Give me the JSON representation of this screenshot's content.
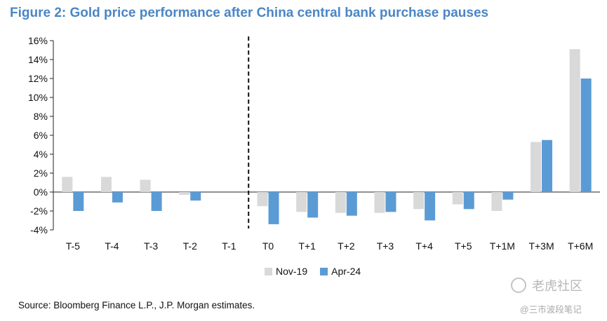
{
  "title": "Figure 2: Gold price performance after China central bank purchase pauses",
  "source": "Source: Bloomberg Finance L.P., J.P. Morgan estimates.",
  "watermark": {
    "brand": "老虎社区",
    "handle": "@三市波段笔记"
  },
  "colors": {
    "title": "#4a86c5",
    "series_nov19": "#d9d9d9",
    "series_apr24": "#5b9bd5"
  },
  "chart_data": {
    "type": "bar",
    "categories": [
      "T-5",
      "T-4",
      "T-3",
      "T-2",
      "T-1",
      "T0",
      "T+1",
      "T+2",
      "T+3",
      "T+4",
      "T+5",
      "T+1M",
      "T+3M",
      "T+6M"
    ],
    "series": [
      {
        "name": "Nov-19",
        "color": "#d9d9d9",
        "values": [
          1.6,
          1.6,
          1.3,
          -0.3,
          0.0,
          -1.5,
          -2.1,
          -2.2,
          -2.2,
          -1.8,
          -1.3,
          -2.0,
          5.3,
          15.1
        ]
      },
      {
        "name": "Apr-24",
        "color": "#5b9bd5",
        "values": [
          -2.0,
          -1.1,
          -2.0,
          -0.9,
          0.0,
          -3.4,
          -2.7,
          -2.5,
          -2.1,
          -3.0,
          -1.8,
          -0.8,
          5.5,
          12.0
        ]
      }
    ],
    "yticks": [
      "16%",
      "14%",
      "12%",
      "10%",
      "8%",
      "6%",
      "4%",
      "2%",
      "0%",
      "-2%",
      "-4%"
    ],
    "ylim": [
      -4,
      16
    ],
    "divider_after": "T-1",
    "legend_position": "bottom",
    "grid": false
  }
}
